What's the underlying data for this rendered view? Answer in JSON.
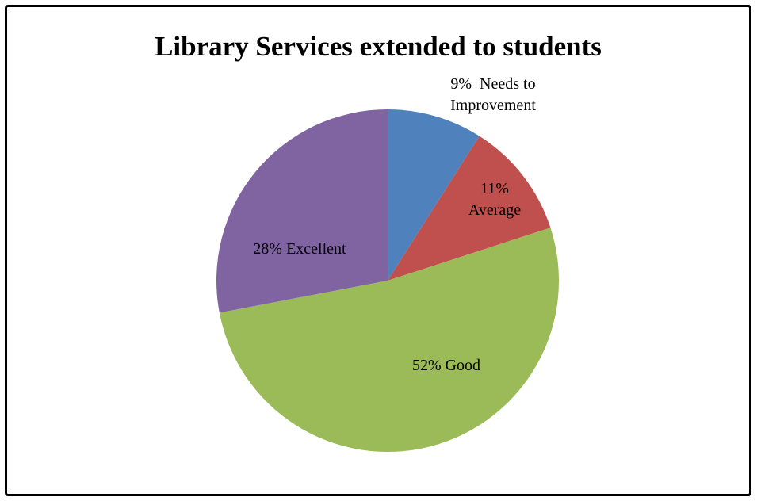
{
  "chart_data": {
    "type": "pie",
    "title": "Library Services extended to students",
    "slices": [
      {
        "label_lines": [
          "9%  Needs to",
          "Improvement"
        ],
        "value": 9,
        "color": "#4f81bd"
      },
      {
        "label_lines": [
          "11%",
          "Average"
        ],
        "value": 11,
        "color": "#c0504d"
      },
      {
        "label_lines": [
          "52% Good"
        ],
        "value": 52,
        "color": "#9bbb59"
      },
      {
        "label_lines": [
          "28% Excellent"
        ],
        "value": 28,
        "color": "#8064a2"
      }
    ]
  }
}
